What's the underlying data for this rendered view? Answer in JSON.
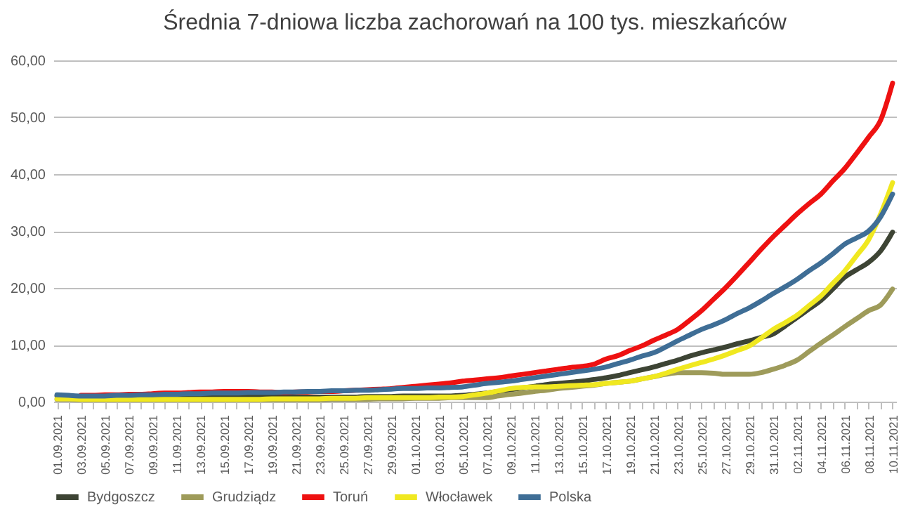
{
  "chart_data": {
    "type": "line",
    "title": "Średnia 7-dniowa liczba zachorowań na 100 tys. mieszkańców",
    "categories": [
      "01.09.2021",
      null,
      "03.09.2021",
      null,
      "05.09.2021",
      null,
      "07.09.2021",
      null,
      "09.09.2021",
      null,
      "11.09.2021",
      null,
      "13.09.2021",
      null,
      "15.09.2021",
      null,
      "17.09.2021",
      null,
      "19.09.2021",
      null,
      "21.09.2021",
      null,
      "23.09.2021",
      null,
      "25.09.2021",
      null,
      "27.09.2021",
      null,
      "29.09.2021",
      null,
      "01.10.2021",
      null,
      "03.10.2021",
      null,
      "05.10.2021",
      null,
      "07.10.2021",
      null,
      "09.10.2021",
      null,
      "11.10.2021",
      null,
      "13.10.2021",
      null,
      "15.10.2021",
      null,
      "17.10.2021",
      null,
      "19.10.2021",
      null,
      "21.10.2021",
      null,
      "23.10.2021",
      null,
      "25.10.2021",
      null,
      "27.10.2021",
      null,
      "29.10.2021",
      null,
      "31.10.2021",
      null,
      "02.11.2021",
      null,
      "04.11.2021",
      null,
      "06.11.2021",
      null,
      "08.11.2021",
      null,
      "10.11.2021"
    ],
    "series": [
      {
        "name": "Bydgoszcz",
        "color": "#3d4434",
        "values": [
          1.0,
          0.9,
          0.8,
          0.7,
          0.7,
          0.7,
          0.7,
          0.7,
          0.7,
          0.7,
          0.7,
          0.7,
          0.7,
          0.7,
          0.8,
          0.8,
          0.8,
          0.8,
          0.8,
          0.8,
          0.8,
          0.8,
          0.8,
          0.8,
          0.8,
          0.8,
          0.9,
          0.9,
          0.9,
          1.0,
          1.0,
          1.0,
          1.0,
          1.0,
          1.1,
          1.3,
          1.5,
          1.8,
          2.1,
          2.4,
          2.7,
          3.0,
          3.2,
          3.4,
          3.6,
          3.9,
          4.2,
          4.6,
          5.1,
          5.6,
          6.1,
          6.7,
          7.3,
          8.0,
          8.6,
          9.1,
          9.6,
          10.2,
          10.7,
          11.3,
          11.9,
          13.3,
          14.8,
          16.3,
          17.8,
          19.8,
          21.9,
          23.2,
          24.5,
          26.5,
          29.8
        ]
      },
      {
        "name": "Grudziądz",
        "color": "#9e9b5a",
        "values": [
          0.4,
          0.4,
          0.3,
          0.3,
          0.3,
          0.3,
          0.3,
          0.3,
          0.3,
          0.3,
          0.3,
          0.3,
          0.3,
          0.3,
          0.3,
          0.3,
          0.3,
          0.3,
          0.3,
          0.3,
          0.3,
          0.3,
          0.3,
          0.4,
          0.4,
          0.4,
          0.4,
          0.5,
          0.5,
          0.5,
          0.6,
          0.6,
          0.6,
          0.7,
          0.7,
          0.7,
          0.7,
          1.0,
          1.3,
          1.5,
          1.8,
          2.0,
          2.3,
          2.5,
          2.7,
          2.9,
          3.2,
          3.4,
          3.6,
          4.0,
          4.4,
          4.8,
          5.1,
          5.1,
          5.1,
          5.0,
          4.8,
          4.8,
          4.8,
          5.1,
          5.7,
          6.4,
          7.3,
          8.8,
          10.3,
          11.7,
          13.2,
          14.6,
          16.0,
          17.0,
          19.8
        ]
      },
      {
        "name": "Toruń",
        "color": "#ee1111",
        "values": [
          null,
          null,
          1.1,
          1.1,
          1.2,
          1.2,
          1.3,
          1.3,
          1.4,
          1.5,
          1.5,
          1.6,
          1.7,
          1.7,
          1.8,
          1.8,
          1.8,
          1.7,
          1.7,
          1.6,
          1.7,
          1.7,
          1.8,
          1.8,
          1.9,
          2.0,
          2.1,
          2.2,
          2.3,
          2.5,
          2.7,
          2.9,
          3.1,
          3.3,
          3.6,
          3.8,
          4.0,
          4.2,
          4.5,
          4.8,
          5.1,
          5.4,
          5.7,
          6.0,
          6.2,
          6.6,
          7.5,
          8.1,
          9.0,
          9.8,
          10.8,
          11.7,
          12.7,
          14.3,
          16.0,
          18.0,
          20.0,
          22.2,
          24.5,
          26.8,
          29.0,
          31.0,
          33.0,
          34.8,
          36.5,
          38.8,
          41.0,
          43.7,
          46.5,
          49.5,
          56.0
        ]
      },
      {
        "name": "Włocławek",
        "color": "#f0e820",
        "values": [
          0.5,
          0.5,
          0.4,
          0.4,
          0.4,
          0.4,
          0.4,
          0.4,
          0.4,
          0.4,
          0.4,
          0.4,
          0.4,
          0.4,
          0.4,
          0.4,
          0.4,
          0.4,
          0.5,
          0.5,
          0.5,
          0.5,
          0.5,
          0.6,
          0.6,
          0.6,
          0.7,
          0.7,
          0.7,
          0.7,
          0.7,
          0.7,
          0.8,
          0.8,
          0.9,
          1.2,
          1.5,
          1.9,
          2.3,
          2.5,
          2.6,
          2.6,
          2.7,
          2.8,
          2.9,
          3.0,
          3.2,
          3.4,
          3.6,
          4.0,
          4.4,
          5.0,
          5.7,
          6.3,
          6.9,
          7.5,
          8.2,
          9.0,
          9.8,
          11.2,
          12.7,
          13.9,
          15.2,
          16.9,
          18.6,
          20.8,
          23.0,
          25.7,
          28.5,
          33.0,
          38.5
        ]
      },
      {
        "name": "Polska",
        "color": "#3f6e96",
        "values": [
          1.2,
          1.1,
          1.0,
          1.0,
          1.0,
          1.1,
          1.1,
          1.2,
          1.2,
          1.3,
          1.3,
          1.4,
          1.4,
          1.5,
          1.5,
          1.5,
          1.6,
          1.6,
          1.6,
          1.7,
          1.7,
          1.8,
          1.8,
          1.9,
          1.9,
          2.0,
          2.0,
          2.1,
          2.2,
          2.3,
          2.3,
          2.4,
          2.4,
          2.5,
          2.6,
          2.9,
          3.2,
          3.4,
          3.6,
          3.9,
          4.2,
          4.5,
          4.8,
          5.1,
          5.4,
          5.7,
          6.1,
          6.7,
          7.3,
          8.0,
          8.6,
          9.6,
          10.7,
          11.7,
          12.7,
          13.5,
          14.4,
          15.5,
          16.5,
          17.7,
          19.0,
          20.2,
          21.5,
          23.0,
          24.4,
          26.0,
          27.7,
          28.8,
          30.0,
          32.5,
          36.5
        ]
      }
    ],
    "ylim": [
      0,
      60
    ],
    "yticks": [
      {
        "value": 0,
        "label": "0,00"
      },
      {
        "value": 10,
        "label": "10,00"
      },
      {
        "value": 20,
        "label": "20,00"
      },
      {
        "value": 30,
        "label": "30,00"
      },
      {
        "value": 40,
        "label": "40,00"
      },
      {
        "value": 50,
        "label": "50,00"
      },
      {
        "value": 60,
        "label": "60,00"
      }
    ],
    "grid": "y",
    "legend": "bottom"
  }
}
